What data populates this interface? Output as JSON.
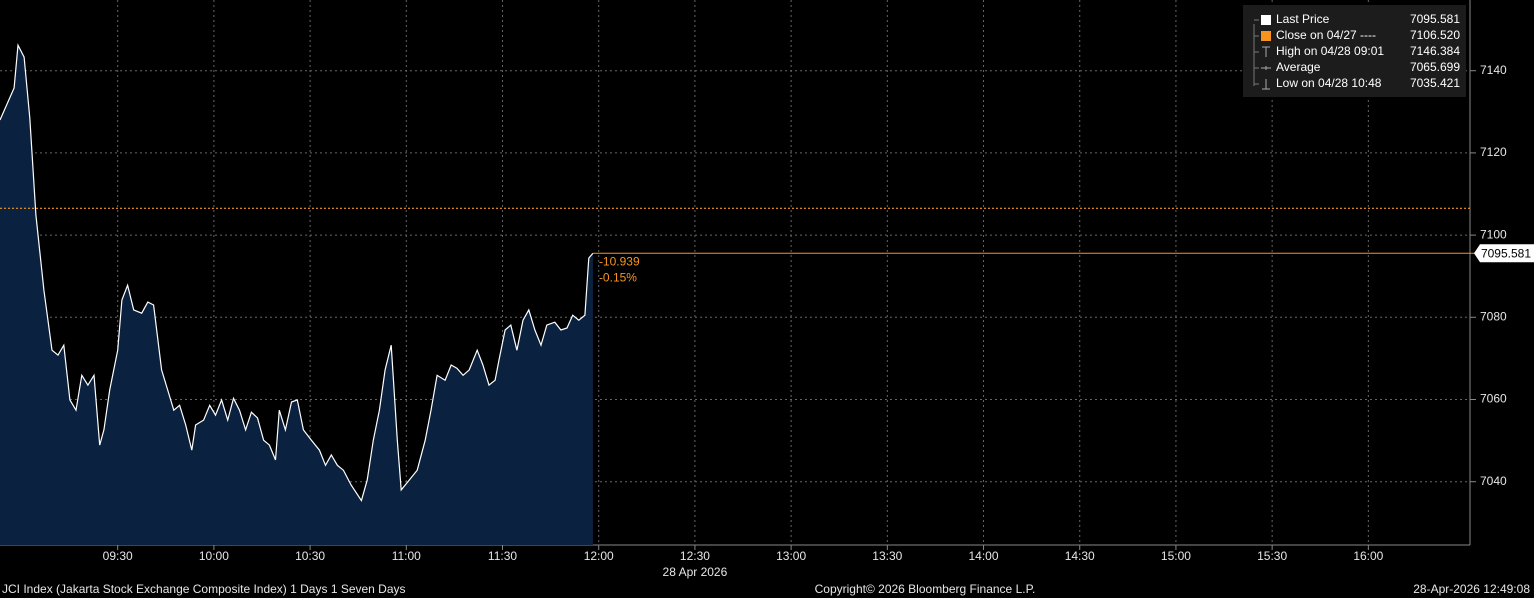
{
  "chart_data": {
    "type": "area",
    "x": [
      533.3,
      537.7,
      538.9,
      540.8,
      542.6,
      544.5,
      547.0,
      549.5,
      551.4,
      553.2,
      555.1,
      557.0,
      558.8,
      560.7,
      562.6,
      564.4,
      565.7,
      567.5,
      570.0,
      571.3,
      573.1,
      575.0,
      577.5,
      579.4,
      581.2,
      583.7,
      585.6,
      587.5,
      589.3,
      591.2,
      593.1,
      594.3,
      596.8,
      598.7,
      600.5,
      602.4,
      604.3,
      606.1,
      608.0,
      609.9,
      611.7,
      613.6,
      615.5,
      617.3,
      619.2,
      620.4,
      622.3,
      624.2,
      626.0,
      627.9,
      630.4,
      632.9,
      634.8,
      636.6,
      638.5,
      640.4,
      642.8,
      646.0,
      647.8,
      649.7,
      651.6,
      653.4,
      655.3,
      657.2,
      658.4,
      660.9,
      663.4,
      665.9,
      667.7,
      669.6,
      672.1,
      674.0,
      675.8,
      677.7,
      679.6,
      682.1,
      683.9,
      685.8,
      687.7,
      688.9,
      690.8,
      692.6,
      694.5,
      696.4,
      698.2,
      700.1,
      702.0,
      703.8,
      706.3,
      708.2,
      710.1,
      711.9,
      713.8,
      715.7,
      716.9,
      718.2
    ],
    "series": [
      {
        "name": "Last Price",
        "color": "#ffffff",
        "fill": "#0b2140",
        "values": [
          7128.0,
          7135.8,
          7146.2,
          7143.3,
          7128.5,
          7104.9,
          7086.6,
          7072.0,
          7070.8,
          7073.2,
          7059.9,
          7057.4,
          7065.9,
          7063.5,
          7065.9,
          7048.9,
          7052.6,
          7062.3,
          7072.0,
          7084.2,
          7087.8,
          7081.8,
          7081.0,
          7083.7,
          7083.0,
          7067.2,
          7062.3,
          7057.4,
          7058.6,
          7053.8,
          7047.7,
          7053.8,
          7055.0,
          7058.6,
          7056.2,
          7059.9,
          7055.0,
          7060.3,
          7057.4,
          7052.6,
          7056.9,
          7055.5,
          7050.1,
          7048.9,
          7045.3,
          7057.4,
          7052.6,
          7059.4,
          7059.9,
          7052.6,
          7050.1,
          7047.7,
          7044.0,
          7046.5,
          7044.0,
          7042.8,
          7039.2,
          7035.4,
          7040.4,
          7050.1,
          7057.4,
          7067.2,
          7073.2,
          7050.1,
          7038.0,
          7040.4,
          7042.8,
          7050.1,
          7057.4,
          7065.9,
          7064.7,
          7068.4,
          7067.6,
          7065.9,
          7067.2,
          7072.0,
          7068.4,
          7063.5,
          7064.7,
          7069.6,
          7076.9,
          7078.1,
          7072.0,
          7079.3,
          7081.8,
          7076.9,
          7073.2,
          7078.1,
          7078.8,
          7076.9,
          7077.4,
          7080.5,
          7079.3,
          7080.5,
          7094.4,
          7095.581
        ]
      }
    ],
    "xlim": [
      533.3,
      991.7
    ],
    "xticks": [
      {
        "value": 570,
        "label": "09:30"
      },
      {
        "value": 600,
        "label": "10:00"
      },
      {
        "value": 630,
        "label": "10:30"
      },
      {
        "value": 660,
        "label": "11:00"
      },
      {
        "value": 690,
        "label": "11:30"
      },
      {
        "value": 720,
        "label": "12:00"
      },
      {
        "value": 750,
        "label": "12:30"
      },
      {
        "value": 780,
        "label": "13:00"
      },
      {
        "value": 810,
        "label": "13:30"
      },
      {
        "value": 840,
        "label": "14:00"
      },
      {
        "value": 870,
        "label": "14:30"
      },
      {
        "value": 900,
        "label": "15:00"
      },
      {
        "value": 930,
        "label": "15:30"
      },
      {
        "value": 960,
        "label": "16:00"
      }
    ],
    "x_sublabel": "28 Apr 2026",
    "ylim": [
      7024.6,
      7157.2
    ],
    "yticks": [
      7040,
      7060,
      7080,
      7100,
      7120,
      7140
    ],
    "grid": true,
    "accent_color": "#f7941d",
    "legend": [
      {
        "label": "Last Price",
        "value": 7095.581
      },
      {
        "label": "Close on 04/27 ----",
        "value": {
          "value": 7106.52,
          "label": "7106.520"
        }
      },
      {
        "label": "High on 04/28 09:01",
        "value": 7146.384
      },
      {
        "label": "Average",
        "value": 7065.699
      },
      {
        "label": "Low on 04/28 10:48",
        "value": 7035.421
      }
    ],
    "change": -10.939,
    "change_pct": {
      "value": -0.15,
      "label": "-0.15%"
    },
    "footer": {
      "left": "JCI Index (Jakarta Stock Exchange Composite Index) 1 Days 1 Seven Days",
      "center": "Copyright© 2026 Bloomberg Finance L.P.",
      "right": "28-Apr-2026 12:49:08"
    }
  }
}
